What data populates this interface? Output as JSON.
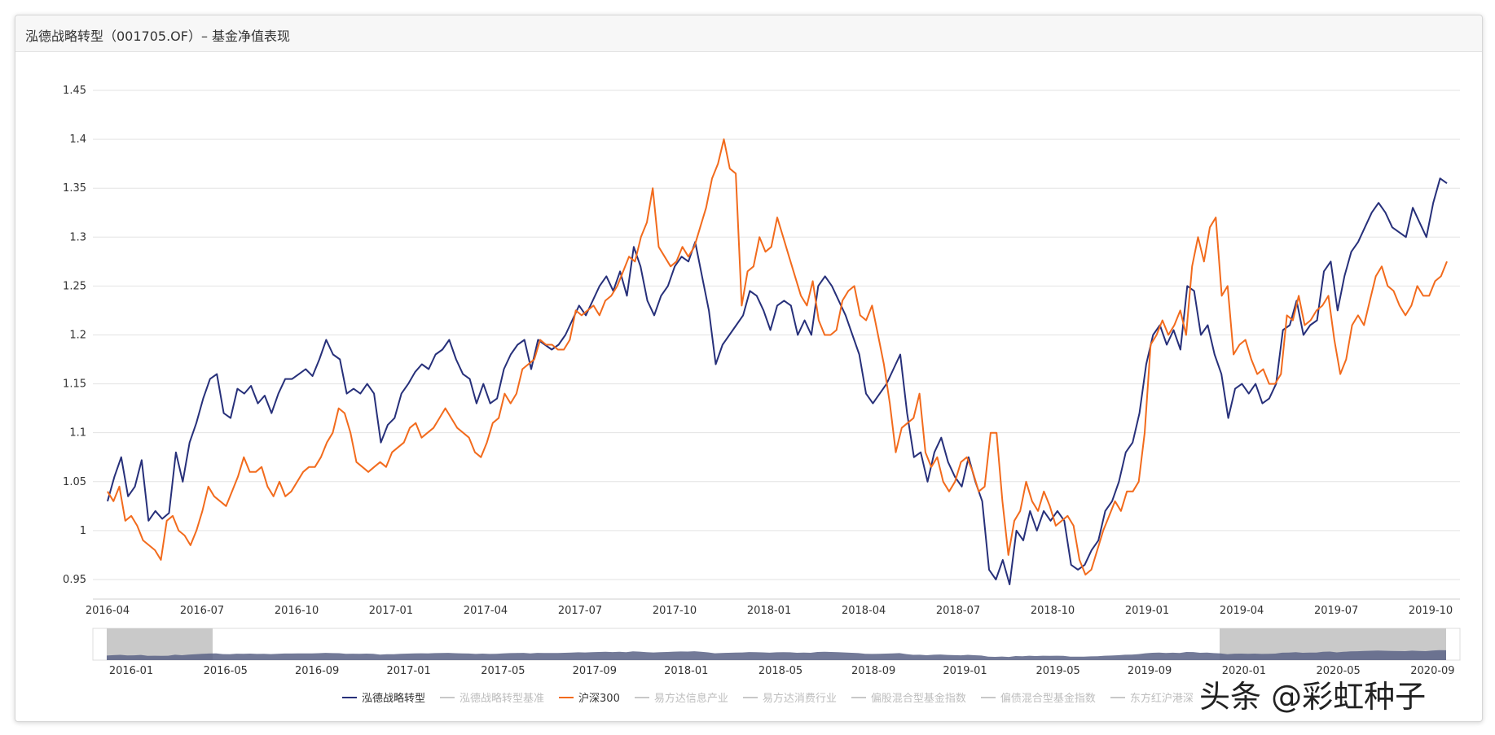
{
  "title": "泓德战略转型（001705.OF）– 基金净值表现",
  "watermark": "头条 @彩虹种子",
  "chart_data": {
    "type": "line",
    "ylim": [
      0.93,
      1.45
    ],
    "yticks": [
      "1.45",
      "1.4",
      "1.35",
      "1.3",
      "1.25",
      "1.2",
      "1.15",
      "1.1",
      "1.05",
      "1",
      "0.95"
    ],
    "ytick_values": [
      1.45,
      1.4,
      1.35,
      1.3,
      1.25,
      1.2,
      1.15,
      1.1,
      1.05,
      1.0,
      0.95
    ],
    "x_start": "2016-04",
    "x_end": "2020-01",
    "xticks": [
      {
        "label": "2016-04",
        "pos": 0.0
      },
      {
        "label": "2016-07",
        "pos": 0.0682
      },
      {
        "label": "2016-10",
        "pos": 0.1364
      },
      {
        "label": "2017-01",
        "pos": 0.2045
      },
      {
        "label": "2017-04",
        "pos": 0.2727
      },
      {
        "label": "2017-07",
        "pos": 0.3409
      },
      {
        "label": "2017-10",
        "pos": 0.4091
      },
      {
        "label": "2018-01",
        "pos": 0.4773
      },
      {
        "label": "2018-04",
        "pos": 0.5455
      },
      {
        "label": "2018-07",
        "pos": 0.6136
      },
      {
        "label": "2018-10",
        "pos": 0.6818
      },
      {
        "label": "2019-01",
        "pos": 0.75
      },
      {
        "label": "2019-04",
        "pos": 0.8182
      },
      {
        "label": "2019-07",
        "pos": 0.8864
      },
      {
        "label": "2019-10",
        "pos": 0.9545
      }
    ],
    "series": [
      {
        "name": "泓德战略转型",
        "color": "#27307a",
        "values": [
          1.03,
          1.055,
          1.075,
          1.035,
          1.045,
          1.072,
          1.01,
          1.02,
          1.012,
          1.018,
          1.08,
          1.05,
          1.09,
          1.11,
          1.135,
          1.155,
          1.16,
          1.12,
          1.115,
          1.145,
          1.14,
          1.148,
          1.13,
          1.138,
          1.12,
          1.14,
          1.155,
          1.155,
          1.16,
          1.165,
          1.158,
          1.175,
          1.195,
          1.18,
          1.175,
          1.14,
          1.145,
          1.14,
          1.15,
          1.14,
          1.09,
          1.108,
          1.115,
          1.14,
          1.15,
          1.162,
          1.17,
          1.165,
          1.18,
          1.185,
          1.195,
          1.175,
          1.16,
          1.155,
          1.13,
          1.15,
          1.13,
          1.135,
          1.165,
          1.18,
          1.19,
          1.195,
          1.165,
          1.195,
          1.19,
          1.185,
          1.19,
          1.2,
          1.215,
          1.23,
          1.22,
          1.235,
          1.25,
          1.26,
          1.245,
          1.265,
          1.24,
          1.29,
          1.27,
          1.235,
          1.22,
          1.24,
          1.25,
          1.27,
          1.28,
          1.275,
          1.295,
          1.26,
          1.225,
          1.17,
          1.19,
          1.2,
          1.21,
          1.22,
          1.245,
          1.24,
          1.225,
          1.205,
          1.23,
          1.235,
          1.23,
          1.2,
          1.215,
          1.2,
          1.25,
          1.26,
          1.25,
          1.235,
          1.22,
          1.2,
          1.18,
          1.14,
          1.13,
          1.14,
          1.15,
          1.165,
          1.18,
          1.12,
          1.075,
          1.08,
          1.05,
          1.08,
          1.095,
          1.07,
          1.055,
          1.045,
          1.075,
          1.05,
          1.03,
          0.96,
          0.95,
          0.97,
          0.945,
          1.0,
          0.99,
          1.02,
          1.0,
          1.02,
          1.01,
          1.02,
          1.01,
          0.965,
          0.96,
          0.965,
          0.98,
          0.99,
          1.02,
          1.03,
          1.05,
          1.08,
          1.09,
          1.12,
          1.17,
          1.2,
          1.21,
          1.19,
          1.205,
          1.185,
          1.25,
          1.245,
          1.2,
          1.21,
          1.18,
          1.16,
          1.115,
          1.145,
          1.15,
          1.14,
          1.15,
          1.13,
          1.135,
          1.15,
          1.205,
          1.21,
          1.235,
          1.2,
          1.21,
          1.215,
          1.265,
          1.275,
          1.225,
          1.26,
          1.285,
          1.295,
          1.31,
          1.325,
          1.335,
          1.325,
          1.31,
          1.305,
          1.3,
          1.33,
          1.315,
          1.3,
          1.335,
          1.36,
          1.355
        ]
      },
      {
        "name": "泓德战略转型基准",
        "color": "#c8c8c8",
        "values": []
      },
      {
        "name": "沪深300",
        "color": "#f26b1d",
        "values": [
          1.04,
          1.03,
          1.045,
          1.01,
          1.015,
          1.005,
          0.99,
          0.985,
          0.98,
          0.97,
          1.01,
          1.015,
          1.0,
          0.995,
          0.985,
          1.0,
          1.02,
          1.045,
          1.035,
          1.03,
          1.025,
          1.04,
          1.055,
          1.075,
          1.06,
          1.06,
          1.065,
          1.045,
          1.035,
          1.05,
          1.035,
          1.04,
          1.05,
          1.06,
          1.065,
          1.065,
          1.075,
          1.09,
          1.1,
          1.125,
          1.12,
          1.1,
          1.07,
          1.065,
          1.06,
          1.065,
          1.07,
          1.065,
          1.08,
          1.085,
          1.09,
          1.105,
          1.11,
          1.095,
          1.1,
          1.105,
          1.115,
          1.125,
          1.115,
          1.105,
          1.1,
          1.095,
          1.08,
          1.075,
          1.09,
          1.11,
          1.115,
          1.14,
          1.13,
          1.14,
          1.165,
          1.17,
          1.175,
          1.195,
          1.19,
          1.19,
          1.185,
          1.185,
          1.195,
          1.225,
          1.22,
          1.225,
          1.23,
          1.22,
          1.235,
          1.24,
          1.25,
          1.265,
          1.28,
          1.275,
          1.3,
          1.315,
          1.35,
          1.29,
          1.28,
          1.27,
          1.275,
          1.29,
          1.28,
          1.29,
          1.31,
          1.33,
          1.36,
          1.375,
          1.4,
          1.37,
          1.365,
          1.23,
          1.265,
          1.27,
          1.3,
          1.285,
          1.29,
          1.32,
          1.3,
          1.28,
          1.26,
          1.24,
          1.23,
          1.255,
          1.215,
          1.2,
          1.2,
          1.205,
          1.235,
          1.245,
          1.25,
          1.22,
          1.215,
          1.23,
          1.2,
          1.17,
          1.13,
          1.08,
          1.105,
          1.11,
          1.115,
          1.14,
          1.08,
          1.065,
          1.075,
          1.05,
          1.04,
          1.05,
          1.07,
          1.075,
          1.06,
          1.04,
          1.045,
          1.1,
          1.1,
          1.03,
          0.975,
          1.01,
          1.02,
          1.05,
          1.03,
          1.02,
          1.04,
          1.025,
          1.005,
          1.01,
          1.015,
          1.005,
          0.97,
          0.955,
          0.96,
          0.98,
          1.0,
          1.015,
          1.03,
          1.02,
          1.04,
          1.04,
          1.05,
          1.1,
          1.19,
          1.2,
          1.215,
          1.2,
          1.21,
          1.225,
          1.2,
          1.27,
          1.3,
          1.275,
          1.31,
          1.32,
          1.24,
          1.25,
          1.18,
          1.19,
          1.195,
          1.175,
          1.16,
          1.165,
          1.15,
          1.15,
          1.16,
          1.22,
          1.215,
          1.24,
          1.21,
          1.215,
          1.225,
          1.23,
          1.24,
          1.195,
          1.16,
          1.175,
          1.21,
          1.22,
          1.21,
          1.235,
          1.26,
          1.27,
          1.25,
          1.245,
          1.23,
          1.22,
          1.23,
          1.25,
          1.24,
          1.24,
          1.255,
          1.26,
          1.275
        ]
      },
      {
        "name": "易方达信息产业",
        "color": "#c8c8c8",
        "values": []
      },
      {
        "name": "易方达消费行业",
        "color": "#c8c8c8",
        "values": []
      },
      {
        "name": "偏股混合型基金指数",
        "color": "#c8c8c8",
        "values": []
      },
      {
        "name": "偏债混合型基金指数",
        "color": "#c8c8c8",
        "values": []
      },
      {
        "name": "东方红沪港深",
        "color": "#c8c8c8",
        "values": []
      }
    ],
    "navigator": {
      "xticks": [
        {
          "label": "2016-01",
          "pos": 0.028
        },
        {
          "label": "2016-05",
          "pos": 0.097
        },
        {
          "label": "2016-09",
          "pos": 0.164
        },
        {
          "label": "2017-01",
          "pos": 0.231
        },
        {
          "label": "2017-05",
          "pos": 0.3
        },
        {
          "label": "2017-09",
          "pos": 0.367
        },
        {
          "label": "2018-01",
          "pos": 0.434
        },
        {
          "label": "2018-05",
          "pos": 0.503
        },
        {
          "label": "2018-09",
          "pos": 0.571
        },
        {
          "label": "2019-01",
          "pos": 0.638
        },
        {
          "label": "2019-05",
          "pos": 0.706
        },
        {
          "label": "2019-09",
          "pos": 0.773
        },
        {
          "label": "2020-01",
          "pos": 0.842
        },
        {
          "label": "2020-05",
          "pos": 0.911
        },
        {
          "label": "2020-09",
          "pos": 0.98
        }
      ]
    }
  },
  "legend": [
    {
      "label": "泓德战略转型",
      "color": "#27307a",
      "active": true
    },
    {
      "label": "泓德战略转型基准",
      "color": "#c8c8c8",
      "active": false
    },
    {
      "label": "沪深300",
      "color": "#f26b1d",
      "active": true
    },
    {
      "label": "易方达信息产业",
      "color": "#c8c8c8",
      "active": false
    },
    {
      "label": "易方达消费行业",
      "color": "#c8c8c8",
      "active": false
    },
    {
      "label": "偏股混合型基金指数",
      "color": "#c8c8c8",
      "active": false
    },
    {
      "label": "偏债混合型基金指数",
      "color": "#c8c8c8",
      "active": false
    },
    {
      "label": "东方红沪港深",
      "color": "#c8c8c8",
      "active": false
    }
  ]
}
